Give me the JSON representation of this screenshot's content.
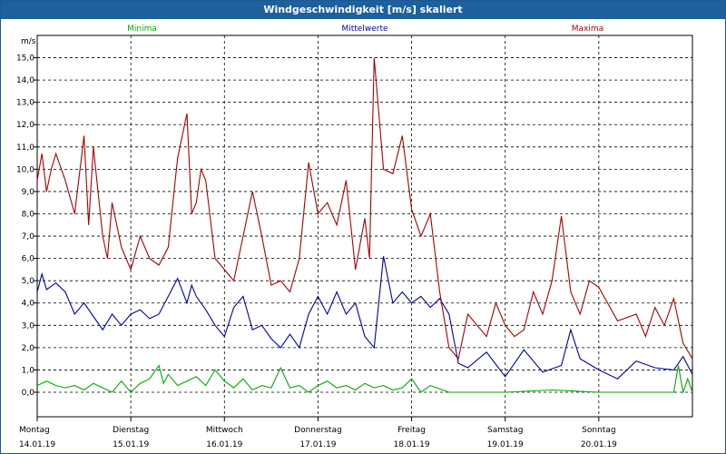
{
  "chart_data": {
    "type": "line",
    "title": "Windgeschwindigkeit [m/s] skaliert",
    "ylabel": "m/s",
    "ylim": [
      -1.1,
      16.0
    ],
    "yticks": [
      "0,0",
      "1,0",
      "2,0",
      "3,0",
      "4,0",
      "5,0",
      "6,0",
      "7,0",
      "8,0",
      "9,0",
      "10,0",
      "11,0",
      "12,0",
      "13,0",
      "14,0",
      "15,0"
    ],
    "xlim": [
      0,
      7
    ],
    "grid": true,
    "days": [
      {
        "name": "Montag",
        "date": "14.01.19"
      },
      {
        "name": "Dienstag",
        "date": "15.01.19"
      },
      {
        "name": "Mittwoch",
        "date": "16.01.19"
      },
      {
        "name": "Donnerstag",
        "date": "17.01.19"
      },
      {
        "name": "Freitag",
        "date": "18.01.19"
      },
      {
        "name": "Samstag",
        "date": "19.01.19"
      },
      {
        "name": "Sonntag",
        "date": "20.01.19"
      }
    ],
    "series": [
      {
        "name": "Minima",
        "color": "#00aa00",
        "x": [
          0,
          0.1,
          0.2,
          0.3,
          0.4,
          0.5,
          0.6,
          0.7,
          0.8,
          0.9,
          1.0,
          1.1,
          1.2,
          1.3,
          1.35,
          1.4,
          1.5,
          1.6,
          1.7,
          1.8,
          1.9,
          2.0,
          2.1,
          2.2,
          2.3,
          2.4,
          2.5,
          2.6,
          2.7,
          2.8,
          2.9,
          3.0,
          3.1,
          3.2,
          3.3,
          3.4,
          3.5,
          3.6,
          3.7,
          3.8,
          3.9,
          4.0,
          4.1,
          4.2,
          4.4,
          4.6,
          4.8,
          5.0,
          5.5,
          6.0,
          6.4,
          6.6,
          6.8,
          6.85,
          6.9,
          6.95,
          7.0
        ],
        "values": [
          0.3,
          0.5,
          0.3,
          0.2,
          0.3,
          0.1,
          0.4,
          0.2,
          0.0,
          0.5,
          0.0,
          0.4,
          0.6,
          1.2,
          0.4,
          0.8,
          0.3,
          0.5,
          0.7,
          0.3,
          1.0,
          0.5,
          0.2,
          0.6,
          0.1,
          0.3,
          0.2,
          1.1,
          0.2,
          0.3,
          0.0,
          0.3,
          0.5,
          0.2,
          0.3,
          0.1,
          0.4,
          0.2,
          0.3,
          0.1,
          0.2,
          0.6,
          0.0,
          0.3,
          0.0,
          0.0,
          0.0,
          0.0,
          0.1,
          0.0,
          0.0,
          0.0,
          0.0,
          1.2,
          0.0,
          0.6,
          0.0
        ]
      },
      {
        "name": "Mittelwerte",
        "color": "#0000aa",
        "x": [
          0,
          0.05,
          0.1,
          0.2,
          0.3,
          0.4,
          0.5,
          0.6,
          0.7,
          0.8,
          0.9,
          1.0,
          1.1,
          1.2,
          1.3,
          1.4,
          1.5,
          1.6,
          1.65,
          1.7,
          1.8,
          1.9,
          2.0,
          2.1,
          2.2,
          2.3,
          2.4,
          2.5,
          2.6,
          2.7,
          2.8,
          2.9,
          3.0,
          3.1,
          3.2,
          3.3,
          3.4,
          3.5,
          3.6,
          3.7,
          3.8,
          3.9,
          4.0,
          4.1,
          4.2,
          4.3,
          4.4,
          4.5,
          4.6,
          4.8,
          5.0,
          5.2,
          5.4,
          5.6,
          5.7,
          5.8,
          6.0,
          6.2,
          6.4,
          6.6,
          6.8,
          6.9,
          7.0
        ],
        "values": [
          4.5,
          5.3,
          4.6,
          4.9,
          4.5,
          3.5,
          4.0,
          3.4,
          2.8,
          3.5,
          3.0,
          3.5,
          3.7,
          3.3,
          3.5,
          4.3,
          5.1,
          4.0,
          4.8,
          4.3,
          3.7,
          3.0,
          2.5,
          3.8,
          4.3,
          2.8,
          3.0,
          2.4,
          2.0,
          2.6,
          2.0,
          3.5,
          4.3,
          3.5,
          4.5,
          3.5,
          4.0,
          2.5,
          2.0,
          6.1,
          4.0,
          4.5,
          4.0,
          4.3,
          3.8,
          4.2,
          3.5,
          1.3,
          1.1,
          1.8,
          0.7,
          1.9,
          0.9,
          1.2,
          2.8,
          1.5,
          1.0,
          0.6,
          1.4,
          1.1,
          1.0,
          1.6,
          0.8
        ]
      },
      {
        "name": "Maxima",
        "color": "#aa0000",
        "x": [
          0,
          0.05,
          0.1,
          0.15,
          0.2,
          0.3,
          0.4,
          0.5,
          0.55,
          0.6,
          0.65,
          0.7,
          0.75,
          0.8,
          0.9,
          1.0,
          1.1,
          1.2,
          1.3,
          1.4,
          1.5,
          1.6,
          1.65,
          1.7,
          1.75,
          1.8,
          1.9,
          2.0,
          2.1,
          2.2,
          2.3,
          2.4,
          2.5,
          2.6,
          2.7,
          2.8,
          2.9,
          3.0,
          3.1,
          3.2,
          3.3,
          3.4,
          3.5,
          3.55,
          3.6,
          3.7,
          3.8,
          3.9,
          4.0,
          4.1,
          4.2,
          4.3,
          4.4,
          4.5,
          4.6,
          4.7,
          4.8,
          4.9,
          5.0,
          5.1,
          5.2,
          5.3,
          5.4,
          5.5,
          5.6,
          5.7,
          5.8,
          5.9,
          6.0,
          6.2,
          6.4,
          6.5,
          6.6,
          6.7,
          6.8,
          6.9,
          7.0
        ],
        "values": [
          9.5,
          10.7,
          9.0,
          10.0,
          10.7,
          9.5,
          8.0,
          11.5,
          7.5,
          11.0,
          9.0,
          7.0,
          6.0,
          8.5,
          6.5,
          5.5,
          7.0,
          6.0,
          5.7,
          6.5,
          10.5,
          12.5,
          8.0,
          8.5,
          10.0,
          9.5,
          6.0,
          5.5,
          5.0,
          7.0,
          9.0,
          7.0,
          4.8,
          5.0,
          4.5,
          6.0,
          10.3,
          8.0,
          8.5,
          7.5,
          9.5,
          5.5,
          7.8,
          6.0,
          15.0,
          10.0,
          9.8,
          11.5,
          8.2,
          7.0,
          8.0,
          4.5,
          2.0,
          1.5,
          3.5,
          3.0,
          2.5,
          4.0,
          3.0,
          2.5,
          2.8,
          4.5,
          3.5,
          5.0,
          7.9,
          4.5,
          3.5,
          5.0,
          4.7,
          3.2,
          3.5,
          2.5,
          3.8,
          3.0,
          4.2,
          2.2,
          1.5
        ]
      }
    ]
  }
}
